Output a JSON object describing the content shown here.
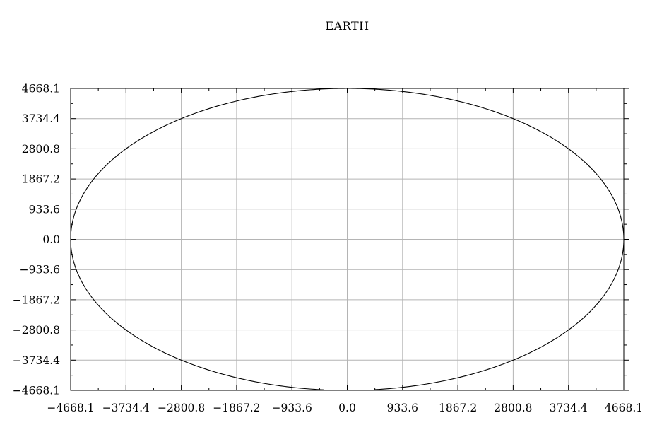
{
  "chart_data": {
    "type": "line",
    "title": "EARTH",
    "xlabel": "",
    "ylabel": "",
    "xlim": [
      -4668.1,
      4668.1
    ],
    "ylim": [
      -4668.1,
      4668.1
    ],
    "grid": true,
    "x_ticks": [
      -4668.1,
      -3734.4,
      -2800.8,
      -1867.2,
      -933.6,
      0.0,
      933.6,
      1867.2,
      2800.8,
      3734.4,
      4668.1
    ],
    "y_ticks": [
      -4668.1,
      -3734.4,
      -2800.8,
      -1867.2,
      -933.6,
      0.0,
      933.6,
      1867.2,
      2800.8,
      3734.4,
      4668.1
    ],
    "x_tick_labels": [
      "−4668.1",
      "−3734.4",
      "−2800.8",
      "−1867.2",
      "−933.6",
      "0.0",
      "933.6",
      "1867.2",
      "2800.8",
      "3734.4",
      "4668.1"
    ],
    "y_tick_labels": [
      "−4668.1",
      "−3734.4",
      "−2800.8",
      "−1867.2",
      "−933.6",
      "0.0",
      "933.6",
      "1867.2",
      "2800.8",
      "3734.4",
      "4668.1"
    ],
    "series": [
      {
        "shape": "ellipse",
        "center": [
          0.0,
          0.0
        ],
        "semi_axis_x": 4668.1,
        "semi_axis_y": 4668.1,
        "gap_start_x": -400,
        "gap_end_x": 450,
        "gap_side": "bottom",
        "color": "#000000"
      }
    ]
  }
}
